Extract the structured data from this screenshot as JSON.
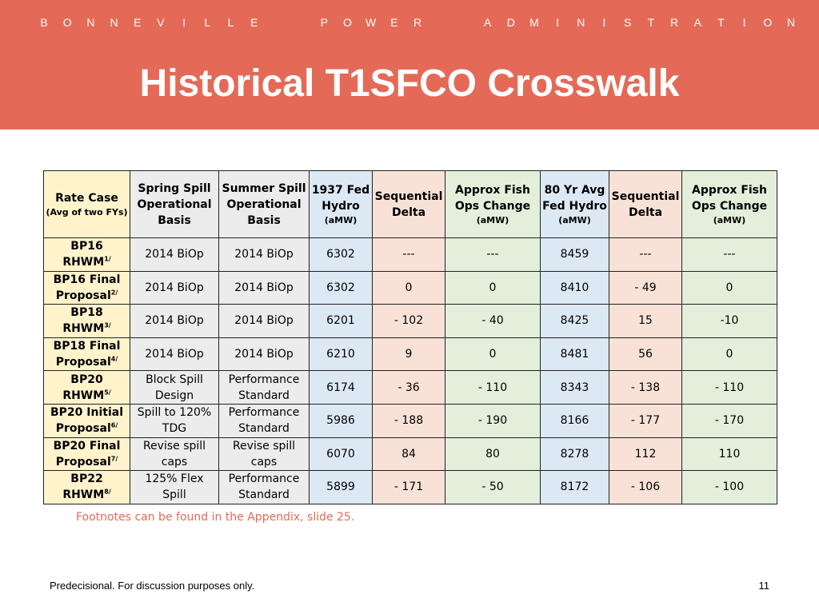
{
  "header": {
    "org_letters": [
      "B",
      "O",
      "N",
      "N",
      "E",
      "V",
      "I",
      "L",
      "L",
      "E",
      " ",
      " ",
      "P",
      "O",
      "W",
      "E",
      "R",
      " ",
      " ",
      "A",
      "D",
      "M",
      "I",
      "N",
      "I",
      "S",
      "T",
      "R",
      "A",
      "T",
      "I",
      "O",
      "N"
    ],
    "title": "Historical T1SFCO Crosswalk"
  },
  "colors": {
    "banner": "#e46a57",
    "rate_case_col": "#fff3cc",
    "basis_cols": "#ececec",
    "hydro_cols": "#dde8f5",
    "delta_cols": "#f8e2d8",
    "fish_cols": "#e3efdb"
  },
  "table": {
    "headers": [
      {
        "main": "Rate Case",
        "sub": "(Avg of two FYs)"
      },
      {
        "main": "Spring Spill Operational Basis",
        "sub": ""
      },
      {
        "main": "Summer Spill Operational Basis",
        "sub": ""
      },
      {
        "main": "1937 Fed Hydro",
        "sub": "(aMW)"
      },
      {
        "main": "Sequential Delta",
        "sub": ""
      },
      {
        "main": "Approx Fish Ops Change",
        "sub": "(aMW)"
      },
      {
        "main": "80 Yr Avg Fed Hydro",
        "sub": "(aMW)"
      },
      {
        "main": "Sequential Delta",
        "sub": ""
      },
      {
        "main": "Approx Fish Ops Change",
        "sub": "(aMW)"
      }
    ],
    "rows": [
      {
        "rate_case": "BP16 RHWM",
        "note": "1/",
        "spring": "2014 BiOp",
        "summer": "2014 BiOp",
        "hydro1937": "6302",
        "delta1": "---",
        "fish1": "---",
        "hydro80": "8459",
        "delta2": "---",
        "fish2": "---"
      },
      {
        "rate_case": "BP16 Final Proposal",
        "note": "2/",
        "spring": "2014 BiOp",
        "summer": "2014 BiOp",
        "hydro1937": "6302",
        "delta1": "0",
        "fish1": "0",
        "hydro80": "8410",
        "delta2": "- 49",
        "fish2": "0"
      },
      {
        "rate_case": "BP18 RHWM",
        "note": "3/",
        "spring": "2014 BiOp",
        "summer": "2014 BiOp",
        "hydro1937": "6201",
        "delta1": "- 102",
        "fish1": "- 40",
        "hydro80": "8425",
        "delta2": "15",
        "fish2": "-10"
      },
      {
        "rate_case": "BP18 Final Proposal",
        "note": "4/",
        "spring": "2014 BiOp",
        "summer": "2014 BiOp",
        "hydro1937": "6210",
        "delta1": "9",
        "fish1": "0",
        "hydro80": "8481",
        "delta2": "56",
        "fish2": "0"
      },
      {
        "rate_case": "BP20 RHWM",
        "note": "5/",
        "spring": "Block Spill Design",
        "summer": "Performance Standard",
        "hydro1937": "6174",
        "delta1": "- 36",
        "fish1": "- 110",
        "hydro80": "8343",
        "delta2": "- 138",
        "fish2": "- 110"
      },
      {
        "rate_case": "BP20 Initial Proposal",
        "note": "6/",
        "spring": "Spill to 120% TDG",
        "summer": "Performance Standard",
        "hydro1937": "5986",
        "delta1": "- 188",
        "fish1": "- 190",
        "hydro80": "8166",
        "delta2": "- 177",
        "fish2": "- 170"
      },
      {
        "rate_case": "BP20 Final Proposal",
        "note": "7/",
        "spring": "Revise spill caps",
        "summer": "Revise spill caps",
        "hydro1937": "6070",
        "delta1": "84",
        "fish1": "80",
        "hydro80": "8278",
        "delta2": "112",
        "fish2": "110"
      },
      {
        "rate_case": "BP22 RHWM",
        "note": "8/",
        "spring": "125% Flex Spill",
        "summer": "Performance Standard",
        "hydro1937": "5899",
        "delta1": "- 171",
        "fish1": "- 50",
        "hydro80": "8172",
        "delta2": "- 106",
        "fish2": "- 100"
      }
    ]
  },
  "footnote": "Footnotes can be found in the Appendix, slide 25.",
  "footer": {
    "disclaimer": "Predecisional. For discussion purposes only.",
    "page_number": "11"
  }
}
